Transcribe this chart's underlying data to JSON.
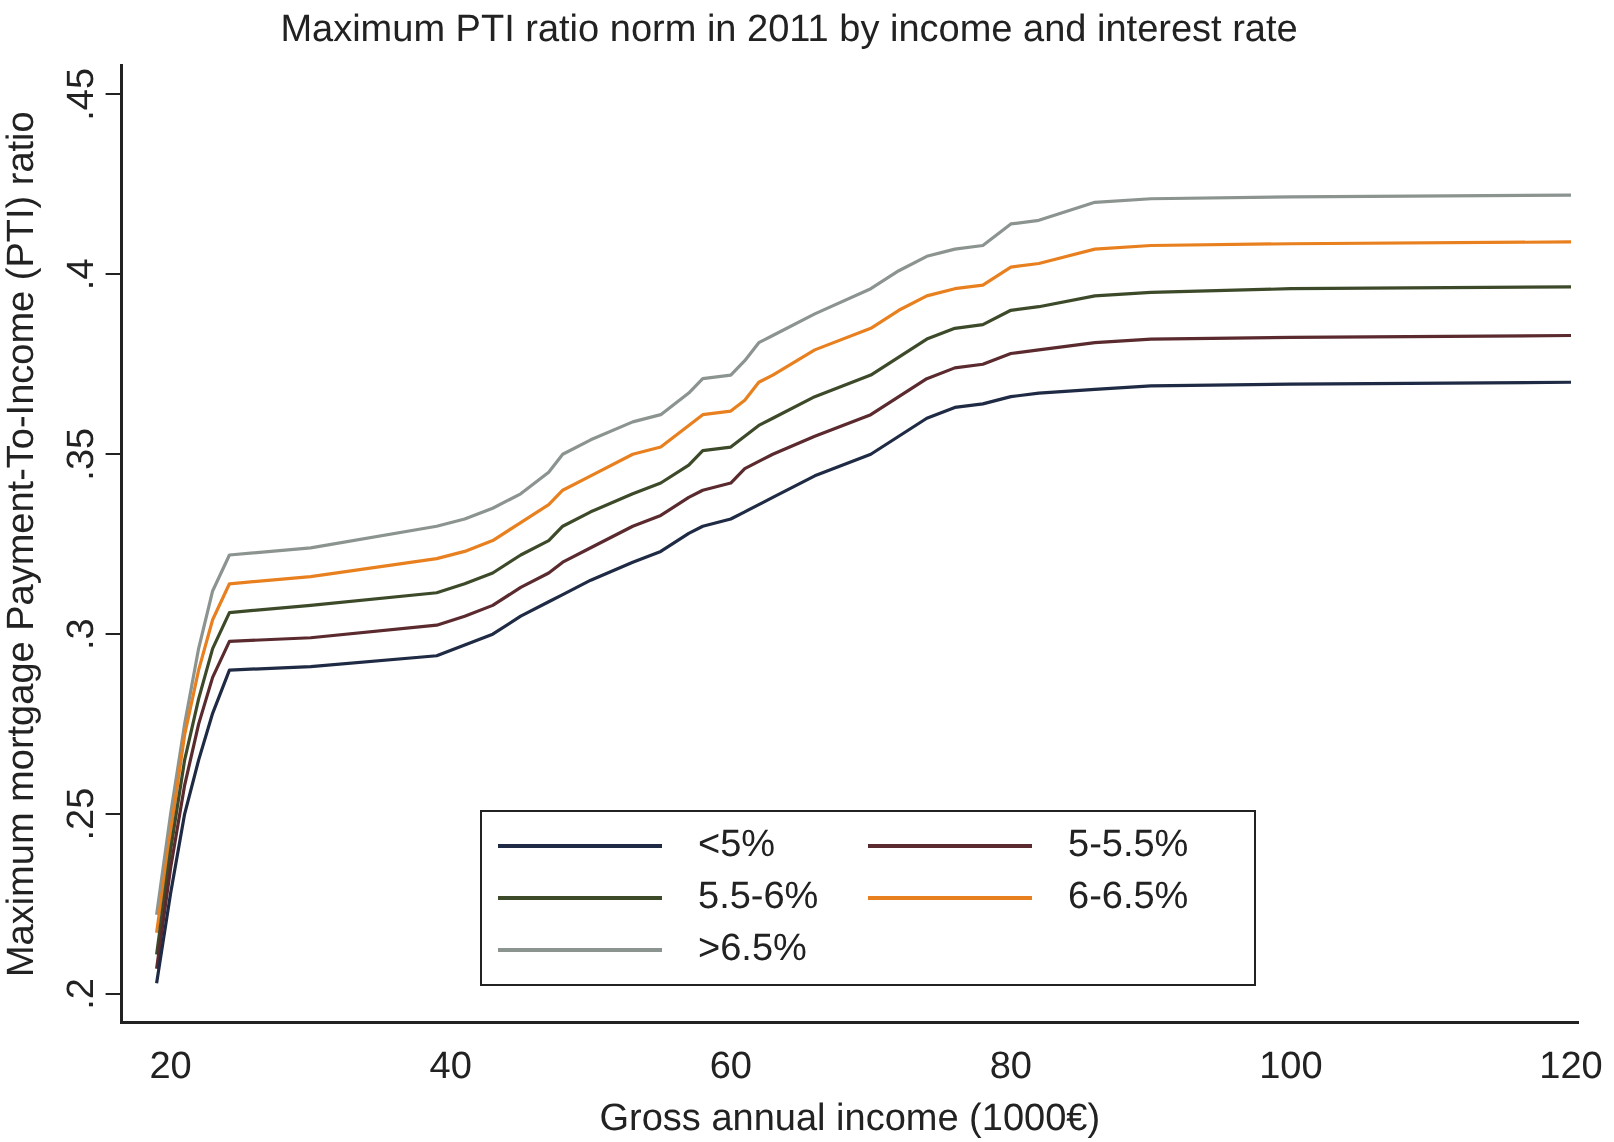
{
  "chart_data": {
    "type": "line",
    "title": "Maximum PTI ratio norm in 2011 by income and interest rate",
    "xlabel": "Gross annual income (1000€)",
    "ylabel": "Maximum mortgage Payment-To-Income (PTI) ratio",
    "x": [
      19,
      20,
      21,
      22,
      23,
      24.2,
      30,
      39,
      41,
      43,
      45,
      47,
      48,
      50,
      53,
      55,
      57,
      58,
      60,
      61,
      62,
      63,
      66,
      70,
      72,
      74,
      76,
      78,
      80,
      82,
      86,
      90,
      100,
      120
    ],
    "series": [
      {
        "name": "<5%",
        "color": "#1f2a44",
        "values": [
          0.203,
          0.228,
          0.25,
          0.265,
          0.278,
          0.29,
          0.291,
          0.294,
          0.297,
          0.3,
          0.305,
          0.309,
          0.311,
          0.315,
          0.32,
          0.323,
          0.328,
          0.33,
          0.332,
          0.334,
          0.336,
          0.338,
          0.344,
          0.35,
          0.355,
          0.36,
          0.363,
          0.364,
          0.366,
          0.367,
          0.368,
          0.369,
          0.3695,
          0.37
        ]
      },
      {
        "name": "5-5.5%",
        "color": "#5a2a2e",
        "values": [
          0.207,
          0.235,
          0.258,
          0.275,
          0.288,
          0.298,
          0.299,
          0.3025,
          0.305,
          0.308,
          0.313,
          0.317,
          0.32,
          0.324,
          0.33,
          0.333,
          0.338,
          0.34,
          0.342,
          0.346,
          0.348,
          0.35,
          0.355,
          0.361,
          0.366,
          0.371,
          0.374,
          0.375,
          0.378,
          0.379,
          0.381,
          0.382,
          0.3825,
          0.383
        ]
      },
      {
        "name": "5.5-6%",
        "color": "#3d4a2a",
        "values": [
          0.211,
          0.24,
          0.265,
          0.282,
          0.296,
          0.306,
          0.308,
          0.3115,
          0.314,
          0.317,
          0.322,
          0.326,
          0.33,
          0.334,
          0.339,
          0.342,
          0.347,
          0.351,
          0.352,
          0.355,
          0.358,
          0.36,
          0.366,
          0.372,
          0.377,
          0.382,
          0.385,
          0.386,
          0.39,
          0.391,
          0.394,
          0.395,
          0.396,
          0.3965
        ]
      },
      {
        "name": "6-6.5%",
        "color": "#e8801f",
        "values": [
          0.217,
          0.245,
          0.272,
          0.29,
          0.304,
          0.314,
          0.316,
          0.321,
          0.323,
          0.326,
          0.331,
          0.336,
          0.34,
          0.344,
          0.35,
          0.352,
          0.358,
          0.361,
          0.362,
          0.365,
          0.37,
          0.372,
          0.379,
          0.385,
          0.39,
          0.394,
          0.396,
          0.397,
          0.402,
          0.403,
          0.407,
          0.408,
          0.4085,
          0.409
        ]
      },
      {
        "name": ">6.5%",
        "color": "#8c9490",
        "values": [
          0.222,
          0.25,
          0.275,
          0.296,
          0.312,
          0.322,
          0.324,
          0.33,
          0.332,
          0.335,
          0.339,
          0.345,
          0.35,
          0.354,
          0.359,
          0.361,
          0.367,
          0.371,
          0.372,
          0.376,
          0.381,
          0.383,
          0.389,
          0.396,
          0.401,
          0.405,
          0.407,
          0.408,
          0.414,
          0.415,
          0.42,
          0.421,
          0.4215,
          0.422
        ]
      }
    ],
    "xlim": [
      16.5,
      120.5
    ],
    "xticks": [
      20,
      40,
      60,
      80,
      100,
      120
    ],
    "ylim": [
      0.192,
      0.458
    ],
    "yticks": [
      {
        "value": 0.2,
        "label": ".2"
      },
      {
        "value": 0.25,
        "label": ".25"
      },
      {
        "value": 0.3,
        "label": ".3"
      },
      {
        "value": 0.35,
        "label": ".35"
      },
      {
        "value": 0.4,
        "label": ".4"
      },
      {
        "value": 0.45,
        "label": ".45"
      }
    ],
    "grid": false,
    "legend": "bottom",
    "marker": "none",
    "line_style": "solid"
  }
}
